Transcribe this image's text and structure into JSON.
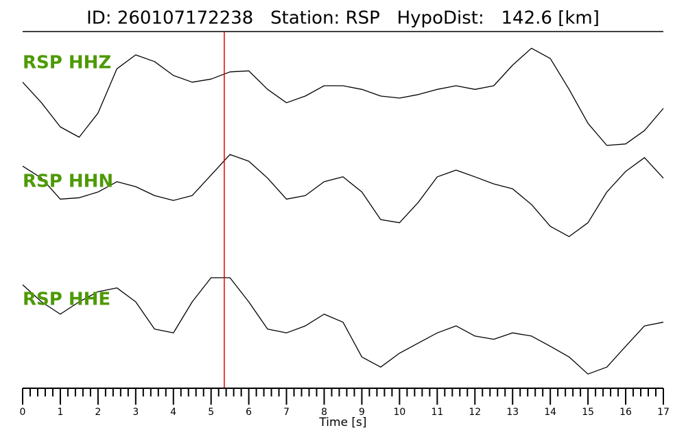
{
  "chart_data": {
    "type": "line",
    "title": "ID: 260107172238   Station: RSP   HypoDist:   142.6 [km]",
    "x_label": "Time [s]",
    "x": [
      0,
      0.5,
      1,
      1.5,
      2,
      2.5,
      3,
      3.5,
      4,
      4.5,
      5,
      5.5,
      6,
      6.5,
      7,
      7.5,
      8,
      8.5,
      9,
      9.5,
      10,
      10.5,
      11,
      11.5,
      12,
      12.5,
      13,
      13.5,
      14,
      14.5,
      15,
      15.5,
      16,
      16.5,
      17
    ],
    "xlim": [
      0,
      17
    ],
    "xticks": [
      0,
      1,
      2,
      3,
      4,
      5,
      6,
      7,
      8,
      9,
      10,
      11,
      12,
      13,
      14,
      15,
      16,
      17
    ],
    "minor_ticks_per_major": 5,
    "ylim": [
      -1,
      1
    ],
    "label_color": "#4e9a06",
    "series": [
      {
        "name": "RSP HHZ",
        "color": "#000000",
        "values": [
          0.31,
          -0.09,
          -0.56,
          -0.76,
          -0.29,
          0.57,
          0.84,
          0.71,
          0.44,
          0.31,
          0.37,
          0.51,
          0.53,
          0.17,
          -0.09,
          0.04,
          0.24,
          0.24,
          0.17,
          0.04,
          0,
          0.07,
          0.17,
          0.24,
          0.17,
          0.24,
          0.64,
          0.97,
          0.77,
          0.17,
          -0.49,
          -0.92,
          -0.89,
          -0.63,
          -0.2
        ]
      },
      {
        "name": "RSP HHN",
        "color": "#000000",
        "values": [
          0.69,
          0.42,
          -0.05,
          -0.02,
          0.11,
          0.34,
          0.23,
          0.03,
          -0.08,
          0.03,
          0.49,
          0.95,
          0.8,
          0.42,
          -0.05,
          0.03,
          0.34,
          0.45,
          0.11,
          -0.51,
          -0.58,
          -0.12,
          0.45,
          0.6,
          0.45,
          0.29,
          0.18,
          -0.17,
          -0.66,
          -0.89,
          -0.58,
          0.11,
          0.57,
          0.88,
          0.42
        ]
      },
      {
        "name": "RSP HHE",
        "color": "#000000",
        "values": [
          0.73,
          0.41,
          0.18,
          0.41,
          0.6,
          0.67,
          0.41,
          -0.1,
          -0.17,
          0.41,
          0.86,
          0.86,
          0.41,
          -0.1,
          -0.17,
          -0.04,
          0.18,
          0.03,
          -0.62,
          -0.81,
          -0.55,
          -0.36,
          -0.17,
          -0.04,
          -0.23,
          -0.29,
          -0.17,
          -0.23,
          -0.42,
          -0.62,
          -0.94,
          -0.81,
          -0.42,
          -0.04,
          0.03
        ]
      }
    ],
    "markers": [
      {
        "x": 5.35,
        "color": "#e00000"
      }
    ]
  }
}
